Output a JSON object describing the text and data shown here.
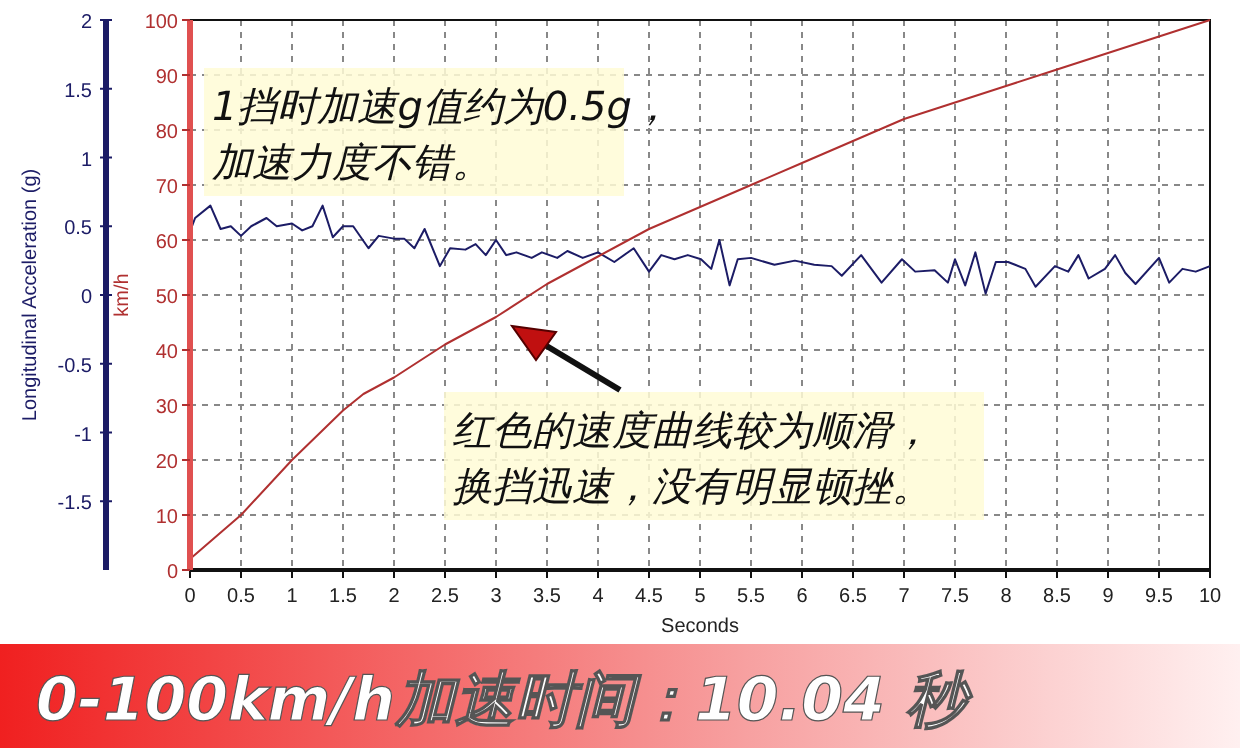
{
  "chart_data": {
    "type": "line",
    "xlabel": "Seconds",
    "ylabel": "Longitudinal Acceleration (g)",
    "y2label": "km/h",
    "xlim": [
      0,
      10
    ],
    "xticks": [
      0,
      0.5,
      1,
      1.5,
      2,
      2.5,
      3,
      3.5,
      4,
      4.5,
      5,
      5.5,
      6,
      6.5,
      7,
      7.5,
      8,
      8.5,
      9,
      9.5,
      10
    ],
    "ylim": [
      -2,
      2
    ],
    "yticks": [
      2,
      1.5,
      1,
      0.5,
      0,
      -0.5,
      -1,
      -1.5
    ],
    "y2lim": [
      0,
      100
    ],
    "y2ticks": [
      0,
      10,
      20,
      30,
      40,
      50,
      60,
      70,
      80,
      90,
      100
    ],
    "grid": true,
    "series": [
      {
        "color": "#1c1c66",
        "x": [
          0,
          0.05,
          0.2,
          0.3,
          0.4,
          0.5,
          0.6,
          0.75,
          0.85,
          1.0,
          1.1,
          1.2,
          1.3,
          1.4,
          1.5,
          1.6,
          1.75,
          1.85,
          2.0,
          2.1,
          2.2,
          2.3,
          2.45,
          2.55,
          2.7,
          2.8,
          2.9,
          3.0,
          3.1,
          3.2,
          3.35,
          3.45,
          3.6,
          3.7,
          3.85,
          4.0,
          4.16,
          4.35,
          4.5,
          4.62,
          4.75,
          4.88,
          5.01,
          5.11,
          5.19,
          5.29,
          5.37,
          5.5,
          5.73,
          5.93,
          6.12,
          6.29,
          6.39,
          6.58,
          6.78,
          6.98,
          7.11,
          7.3,
          7.43,
          7.5,
          7.6,
          7.7,
          7.8,
          7.9,
          8.02,
          8.19,
          8.29,
          8.48,
          8.61,
          8.71,
          8.81,
          8.97,
          9.07,
          9.17,
          9.27,
          9.5,
          9.6,
          9.73,
          9.86,
          10.0
        ],
        "values": [
          0.46,
          0.56,
          0.65,
          0.48,
          0.5,
          0.43,
          0.5,
          0.56,
          0.5,
          0.52,
          0.47,
          0.5,
          0.65,
          0.42,
          0.5,
          0.5,
          0.34,
          0.43,
          0.41,
          0.41,
          0.34,
          0.48,
          0.21,
          0.34,
          0.33,
          0.37,
          0.29,
          0.4,
          0.29,
          0.31,
          0.27,
          0.31,
          0.27,
          0.32,
          0.27,
          0.31,
          0.24,
          0.34,
          0.17,
          0.29,
          0.26,
          0.29,
          0.26,
          0.19,
          0.4,
          0.07,
          0.26,
          0.27,
          0.22,
          0.25,
          0.22,
          0.21,
          0.14,
          0.29,
          0.09,
          0.26,
          0.17,
          0.18,
          0.09,
          0.26,
          0.07,
          0.31,
          0.01,
          0.24,
          0.24,
          0.19,
          0.06,
          0.21,
          0.17,
          0.29,
          0.12,
          0.19,
          0.29,
          0.16,
          0.08,
          0.27,
          0.09,
          0.19,
          0.17,
          0.21
        ]
      },
      {
        "color": "#b03030",
        "axis": "y2",
        "x": [
          0,
          0.5,
          1,
          1.5,
          1.7,
          2,
          2.5,
          3,
          3.5,
          4,
          4.5,
          5,
          5.5,
          6,
          6.5,
          7,
          7.5,
          8,
          8.5,
          9,
          9.5,
          10
        ],
        "values": [
          2,
          10,
          20,
          29,
          32,
          35,
          41,
          46,
          52,
          57,
          62,
          66,
          70,
          74,
          78,
          82,
          85,
          88,
          91,
          94,
          97,
          100
        ]
      }
    ],
    "annotations": [
      "1挡时加速g值约为0.5g，",
      "加速力度不错。",
      "红色的速度曲线较为顺滑，",
      "换挡迅速，没有明显顿挫。",
      "0-100km/h加速时间：10.04 秒"
    ]
  }
}
